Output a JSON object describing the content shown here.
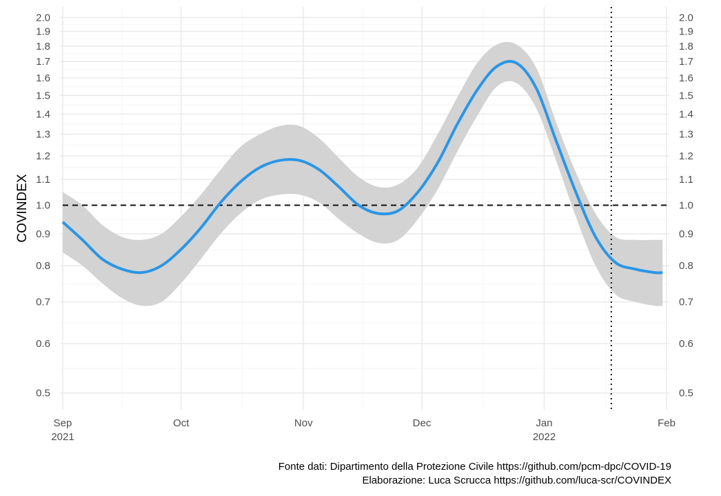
{
  "chart_data": {
    "type": "line",
    "title": "",
    "xlabel": "",
    "ylabel": "COVINDEX",
    "y_scale": "log",
    "ylim": [
      0.47,
      2.08
    ],
    "y_ticks": [
      "0.5",
      "0.6",
      "0.7",
      "0.8",
      "0.9",
      "1.0",
      "1.1",
      "1.2",
      "1.3",
      "1.4",
      "1.5",
      "1.6",
      "1.7",
      "1.8",
      "1.9",
      "2.0"
    ],
    "x_ticks": [
      {
        "date": "2021-09-01",
        "label": "Sep",
        "sublabel": "2021"
      },
      {
        "date": "2021-10-01",
        "label": "Oct",
        "sublabel": ""
      },
      {
        "date": "2021-11-01",
        "label": "Nov",
        "sublabel": ""
      },
      {
        "date": "2021-12-01",
        "label": "Dec",
        "sublabel": ""
      },
      {
        "date": "2022-01-01",
        "label": "Jan",
        "sublabel": "2022"
      },
      {
        "date": "2022-02-01",
        "label": "Feb",
        "sublabel": ""
      }
    ],
    "xlim": [
      "2021-09-01",
      "2022-02-01"
    ],
    "reference_line": {
      "y": 1.0,
      "style": "dashed"
    },
    "vline": {
      "date": "2022-01-18",
      "style": "dotted"
    },
    "grid": true,
    "colors": {
      "line": "#2b96e6",
      "band": "#d3d3d3",
      "grid": "#ebebeb"
    },
    "series": [
      {
        "x": [
          "2021-09-01",
          "2021-09-06",
          "2021-09-11",
          "2021-09-16",
          "2021-09-21",
          "2021-09-26",
          "2021-10-01",
          "2021-10-06",
          "2021-10-11",
          "2021-10-16",
          "2021-10-21",
          "2021-10-26",
          "2021-10-31",
          "2021-11-05",
          "2021-11-10",
          "2021-11-15",
          "2021-11-20",
          "2021-11-25",
          "2021-11-30",
          "2021-12-05",
          "2021-12-10",
          "2021-12-15",
          "2021-12-20",
          "2021-12-25",
          "2021-12-30",
          "2022-01-04",
          "2022-01-09",
          "2022-01-14",
          "2022-01-19",
          "2022-01-24",
          "2022-01-29",
          "2022-01-31"
        ],
        "y": [
          0.94,
          0.88,
          0.82,
          0.79,
          0.78,
          0.8,
          0.85,
          0.92,
          1.01,
          1.09,
          1.15,
          1.18,
          1.18,
          1.14,
          1.07,
          1.0,
          0.97,
          0.98,
          1.05,
          1.17,
          1.35,
          1.53,
          1.67,
          1.69,
          1.54,
          1.27,
          1.05,
          0.89,
          0.81,
          0.79,
          0.78,
          0.78
        ],
        "lower": [
          0.84,
          0.8,
          0.75,
          0.71,
          0.69,
          0.7,
          0.75,
          0.82,
          0.9,
          0.97,
          1.02,
          1.04,
          1.04,
          1.01,
          0.95,
          0.9,
          0.87,
          0.88,
          0.95,
          1.06,
          1.22,
          1.39,
          1.55,
          1.57,
          1.43,
          1.18,
          0.96,
          0.8,
          0.72,
          0.7,
          0.69,
          0.69
        ],
        "upper": [
          1.05,
          1.0,
          0.93,
          0.89,
          0.88,
          0.9,
          0.96,
          1.04,
          1.14,
          1.24,
          1.3,
          1.34,
          1.34,
          1.28,
          1.19,
          1.11,
          1.07,
          1.08,
          1.15,
          1.3,
          1.49,
          1.69,
          1.81,
          1.81,
          1.66,
          1.36,
          1.13,
          0.97,
          0.89,
          0.88,
          0.88,
          0.88
        ]
      }
    ]
  },
  "caption": {
    "line1": "Fonte dati: Dipartimento della Protezione Civile https://github.com/pcm-dpc/COVID-19",
    "line2": "Elaborazione: Luca Scrucca https://github.com/luca-scr/COVINDEX"
  }
}
